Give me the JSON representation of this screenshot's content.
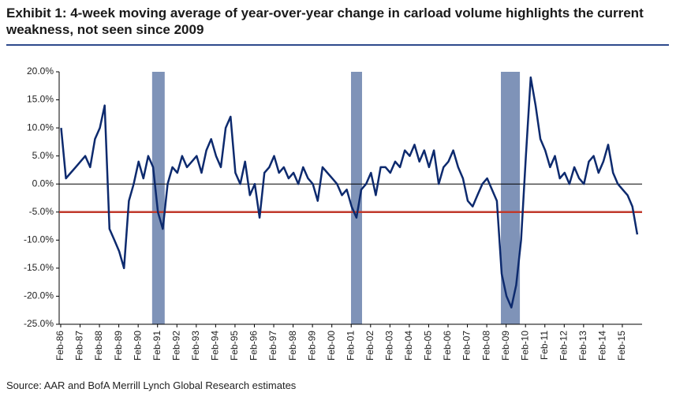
{
  "chart_data": {
    "type": "line",
    "title": "Exhibit 1: 4-week moving average of year-over-year change in carload volume highlights the current weakness, not seen since 2009",
    "source": "Source: AAR and BofA Merrill Lynch Global Research estimates",
    "xlim": [
      1986.0,
      2016.1
    ],
    "ylim": [
      -25,
      20
    ],
    "yticks": [
      {
        "value": 20,
        "label": "20.0%"
      },
      {
        "value": 15,
        "label": "15.0%"
      },
      {
        "value": 10,
        "label": "10.0%"
      },
      {
        "value": 5,
        "label": "5.0%"
      },
      {
        "value": 0,
        "label": "0.0%"
      },
      {
        "value": -5,
        "label": "-5.0%"
      },
      {
        "value": -10,
        "label": "-10.0%"
      },
      {
        "value": -15,
        "label": "-15.0%"
      },
      {
        "value": -20,
        "label": "-20.0%"
      },
      {
        "value": -25,
        "label": "-25.0%"
      }
    ],
    "xticks": [
      {
        "value": 1986.08,
        "label": "Feb-86"
      },
      {
        "value": 1987.08,
        "label": "Feb-87"
      },
      {
        "value": 1988.08,
        "label": "Feb-88"
      },
      {
        "value": 1989.08,
        "label": "Feb-89"
      },
      {
        "value": 1990.08,
        "label": "Feb-90"
      },
      {
        "value": 1991.08,
        "label": "Feb-91"
      },
      {
        "value": 1992.08,
        "label": "Feb-92"
      },
      {
        "value": 1993.08,
        "label": "Feb-93"
      },
      {
        "value": 1994.08,
        "label": "Feb-94"
      },
      {
        "value": 1995.08,
        "label": "Feb-95"
      },
      {
        "value": 1996.08,
        "label": "Feb-96"
      },
      {
        "value": 1997.08,
        "label": "Feb-97"
      },
      {
        "value": 1998.08,
        "label": "Feb-98"
      },
      {
        "value": 1999.08,
        "label": "Feb-99"
      },
      {
        "value": 2000.08,
        "label": "Feb-00"
      },
      {
        "value": 2001.08,
        "label": "Feb-01"
      },
      {
        "value": 2002.08,
        "label": "Feb-02"
      },
      {
        "value": 2003.08,
        "label": "Feb-03"
      },
      {
        "value": 2004.08,
        "label": "Feb-04"
      },
      {
        "value": 2005.08,
        "label": "Feb-05"
      },
      {
        "value": 2006.08,
        "label": "Feb-06"
      },
      {
        "value": 2007.08,
        "label": "Feb-07"
      },
      {
        "value": 2008.08,
        "label": "Feb-08"
      },
      {
        "value": 2009.08,
        "label": "Feb-09"
      },
      {
        "value": 2010.08,
        "label": "Feb-10"
      },
      {
        "value": 2011.08,
        "label": "Feb-11"
      },
      {
        "value": 2012.08,
        "label": "Feb-12"
      },
      {
        "value": 2013.08,
        "label": "Feb-13"
      },
      {
        "value": 2014.08,
        "label": "Feb-14"
      },
      {
        "value": 2015.08,
        "label": "Feb-15"
      }
    ],
    "shaded_spans": [
      [
        1990.8,
        1991.45
      ],
      [
        2001.07,
        2001.64
      ],
      [
        2008.81,
        2009.79
      ]
    ],
    "shade_color": "#7f93b8",
    "reference_line": {
      "value": -5,
      "color": "#c0392b"
    },
    "series": [
      {
        "color": "#0d2a6e",
        "x": [
          1986.1,
          1986.35,
          1986.6,
          1986.85,
          1987.1,
          1987.35,
          1987.6,
          1987.85,
          1988.1,
          1988.35,
          1988.6,
          1988.85,
          1989.1,
          1989.35,
          1989.6,
          1989.85,
          1990.1,
          1990.35,
          1990.6,
          1990.85,
          1991.1,
          1991.35,
          1991.6,
          1991.85,
          1992.1,
          1992.35,
          1992.6,
          1992.85,
          1993.1,
          1993.35,
          1993.6,
          1993.85,
          1994.1,
          1994.35,
          1994.6,
          1994.85,
          1995.1,
          1995.35,
          1995.6,
          1995.85,
          1996.1,
          1996.35,
          1996.6,
          1996.85,
          1997.1,
          1997.35,
          1997.6,
          1997.85,
          1998.1,
          1998.35,
          1998.6,
          1998.85,
          1999.1,
          1999.35,
          1999.6,
          1999.85,
          2000.1,
          2000.35,
          2000.6,
          2000.85,
          2001.1,
          2001.35,
          2001.6,
          2001.85,
          2002.1,
          2002.35,
          2002.6,
          2002.85,
          2003.1,
          2003.35,
          2003.6,
          2003.85,
          2004.1,
          2004.35,
          2004.6,
          2004.85,
          2005.1,
          2005.35,
          2005.6,
          2005.85,
          2006.1,
          2006.35,
          2006.6,
          2006.85,
          2007.1,
          2007.35,
          2007.6,
          2007.85,
          2008.1,
          2008.35,
          2008.6,
          2008.85,
          2009.1,
          2009.35,
          2009.6,
          2009.85,
          2010.1,
          2010.35,
          2010.6,
          2010.85,
          2011.1,
          2011.35,
          2011.6,
          2011.85,
          2012.1,
          2012.35,
          2012.6,
          2012.85,
          2013.1,
          2013.35,
          2013.6,
          2013.85,
          2014.1,
          2014.35,
          2014.6,
          2014.85,
          2015.1,
          2015.35,
          2015.6,
          2015.85
        ],
        "values": [
          10,
          1,
          2,
          3,
          4,
          5,
          3,
          8,
          10,
          14,
          -8,
          -10,
          -12,
          -15,
          -3,
          0,
          4,
          1,
          5,
          3,
          -5,
          -8,
          0,
          3,
          2,
          5,
          3,
          4,
          5,
          2,
          6,
          8,
          5,
          3,
          10,
          12,
          2,
          0,
          4,
          -2,
          0,
          -6,
          2,
          3,
          5,
          2,
          3,
          1,
          2,
          0,
          3,
          1,
          0,
          -3,
          3,
          2,
          1,
          0,
          -2,
          -1,
          -4,
          -6,
          -1,
          0,
          2,
          -2,
          3,
          3,
          2,
          4,
          3,
          6,
          5,
          7,
          4,
          6,
          3,
          6,
          0,
          3,
          4,
          6,
          3,
          1,
          -3,
          -4,
          -2,
          0,
          1,
          -1,
          -3,
          -16,
          -20,
          -22,
          -18,
          -10,
          5,
          19,
          14,
          8,
          6,
          3,
          5,
          1,
          2,
          0,
          3,
          1,
          0,
          4,
          5,
          2,
          4,
          7,
          2,
          0,
          -1,
          -2,
          -4,
          -9
        ]
      }
    ]
  }
}
